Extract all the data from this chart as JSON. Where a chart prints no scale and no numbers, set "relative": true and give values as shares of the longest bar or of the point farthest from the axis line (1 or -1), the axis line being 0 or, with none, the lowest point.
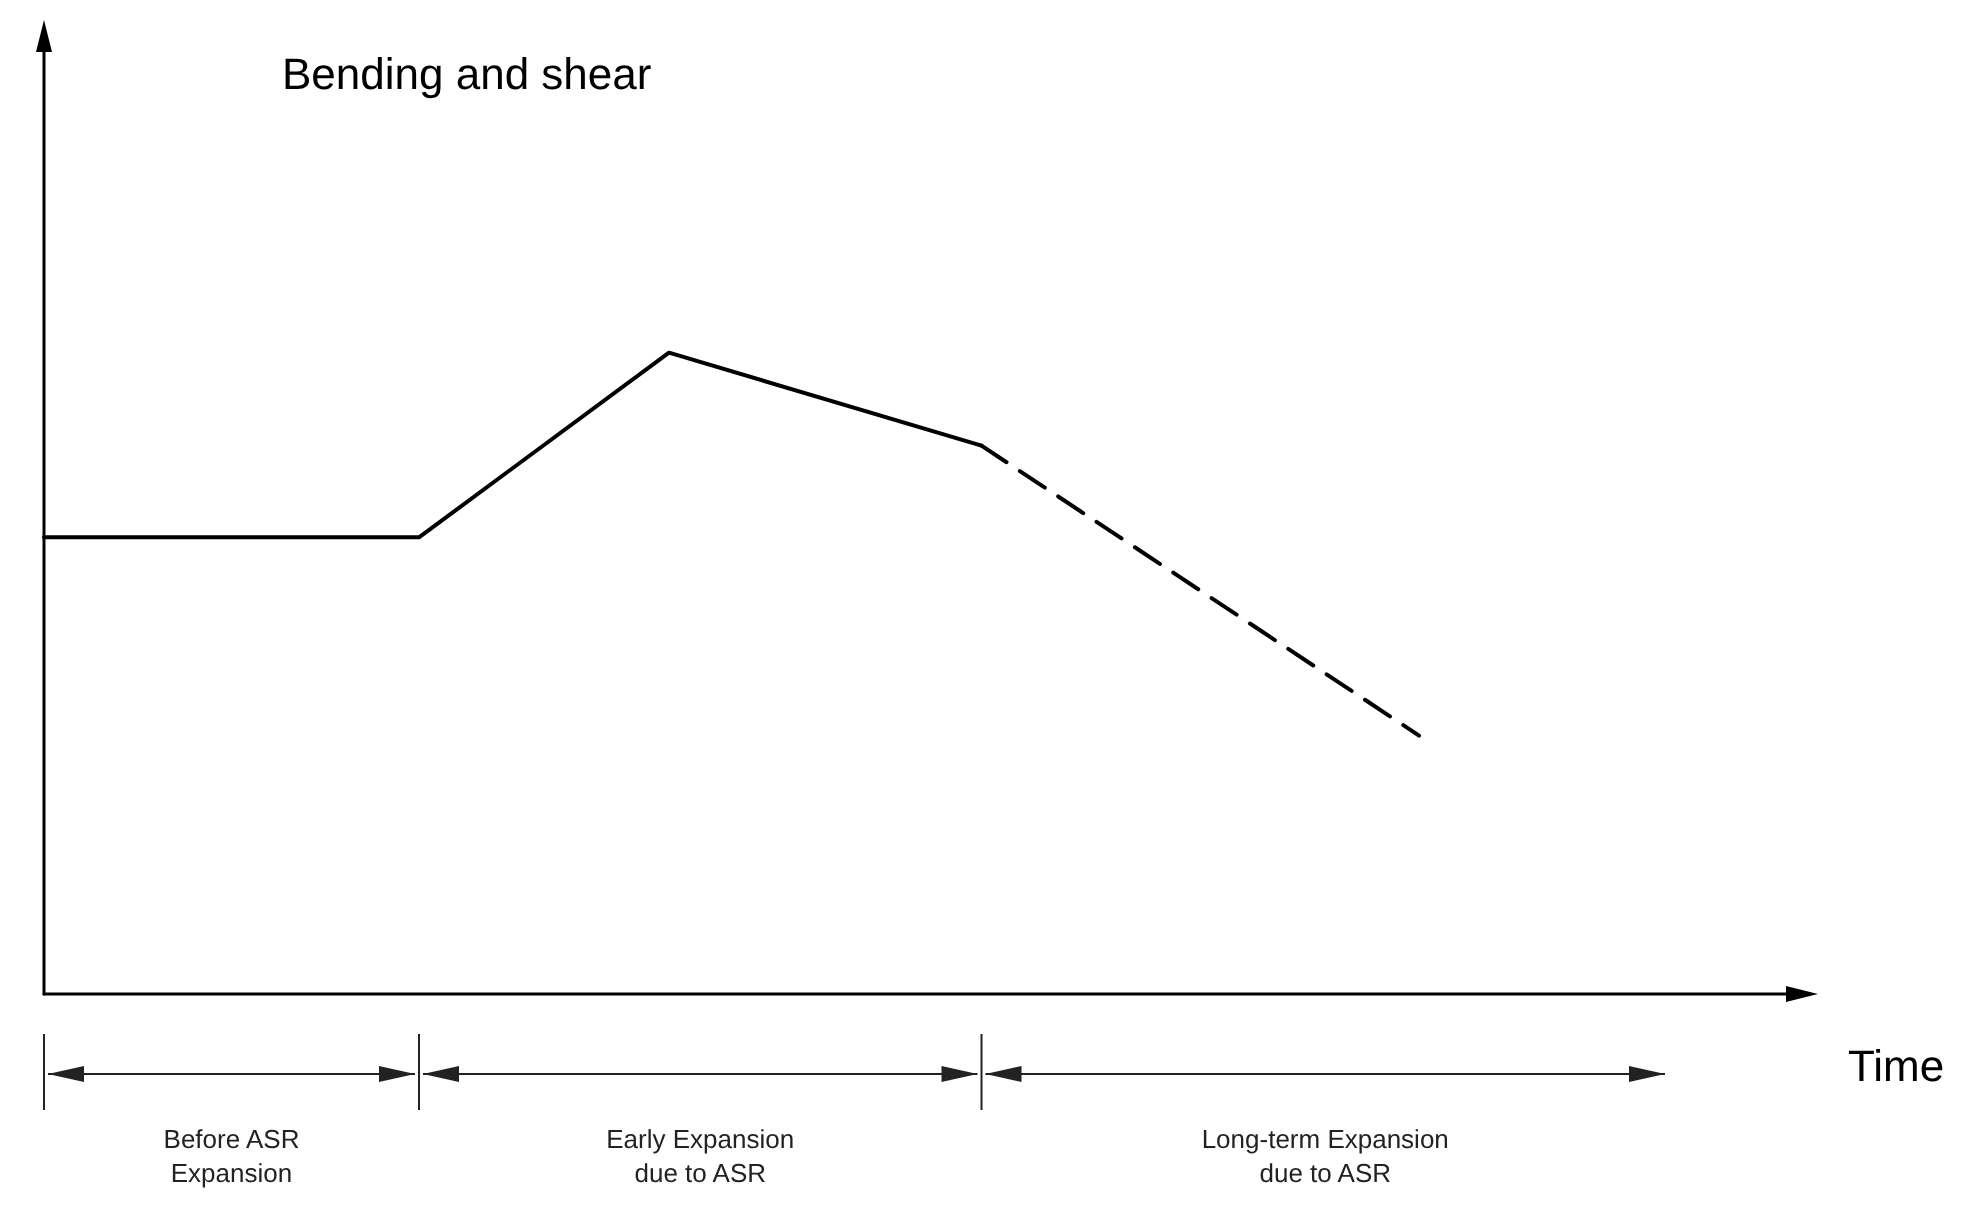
{
  "chart_data": {
    "type": "line",
    "relative": true,
    "xlabel": "Time",
    "grid": false,
    "marker": "none",
    "categories": [
      null,
      null,
      null,
      null,
      null,
      null,
      null,
      null,
      null,
      null,
      null,
      null,
      null,
      null,
      null,
      null,
      null,
      null,
      null,
      null,
      null,
      null,
      null,
      null,
      null,
      null,
      null,
      null,
      null
    ],
    "series": [
      {
        "color": "#000000",
        "line_style": "solid",
        "values": [
          0.712,
          null,
          null,
          null,
          null,
          null,
          0.712,
          null,
          null,
          null,
          1,
          null,
          null,
          null,
          null,
          0.855,
          null,
          null,
          null,
          null,
          null,
          null,
          null,
          null,
          null,
          null,
          null,
          null,
          null
        ]
      },
      {
        "color": "#000000",
        "line_style": "dashed",
        "values": [
          null,
          null,
          null,
          null,
          null,
          null,
          null,
          null,
          null,
          null,
          null,
          null,
          null,
          null,
          null,
          0.855,
          null,
          null,
          null,
          null,
          null,
          null,
          0.403,
          null,
          null,
          null,
          null,
          null,
          null
        ]
      }
    ],
    "annotations": [
      "Bending and shear",
      "Before ASR\nExpansion",
      "Early Expansion\ndue to ASR",
      "Long-term Expansion\ndue to ASR"
    ]
  }
}
